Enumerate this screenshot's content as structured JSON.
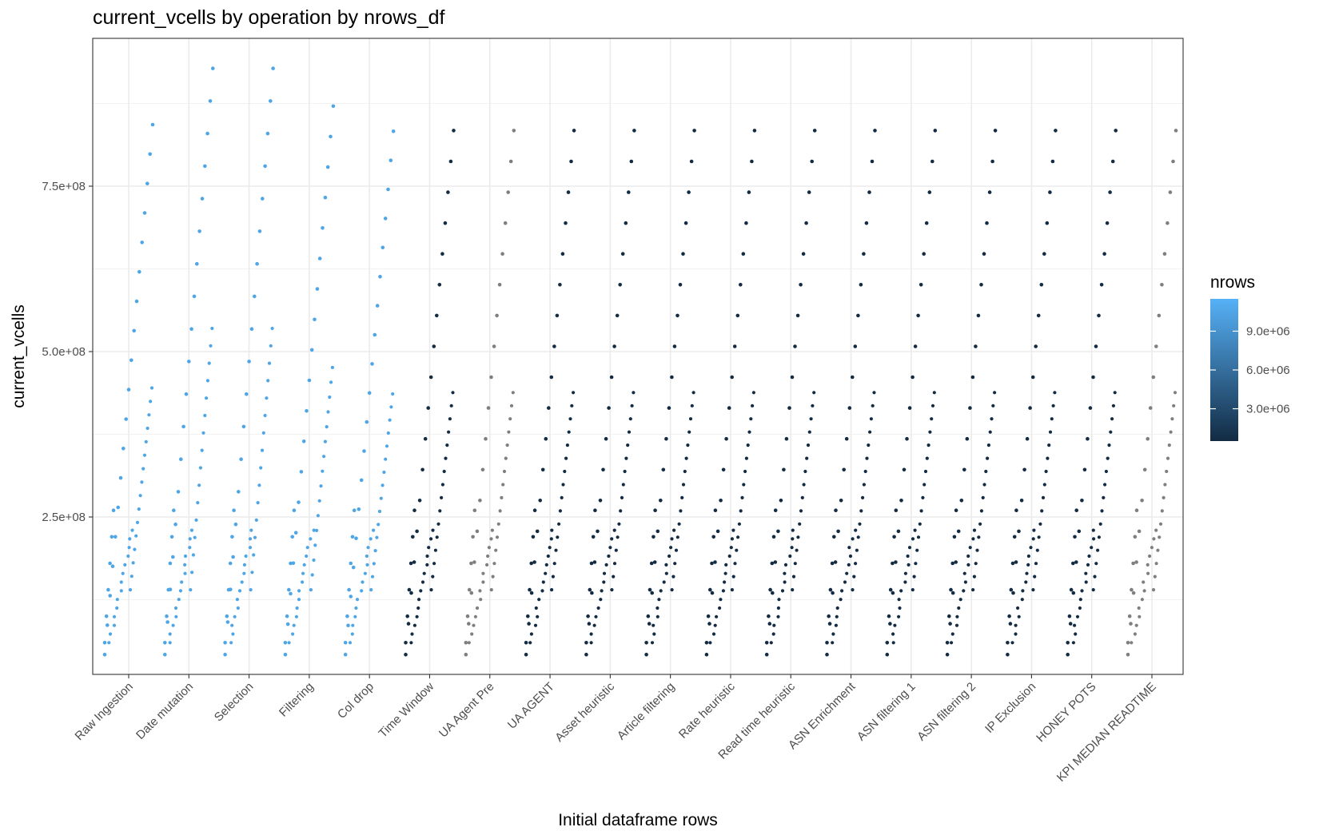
{
  "chart_data": {
    "type": "scatter",
    "title": "current_vcells by operation by nrows_df",
    "xlabel": "Initial dataframe rows",
    "ylabel": "current_vcells",
    "categories": [
      "Raw Ingestion",
      "Date mutation",
      "Selection",
      "Filtering",
      "Col drop",
      "Time Window",
      "UA Agent Pre",
      "UA AGENT",
      "Asset heuristic",
      "Article filtering",
      "Rate heuristic",
      "Read time heuristic",
      "ASN Enrichment",
      "ASN filtering 1",
      "ASN filtering 2",
      "IP Exclusion",
      "HONEY POTS",
      "KPI MEDIAN READTIME"
    ],
    "ylim": [
      0,
      930000000
    ],
    "yticks": [
      {
        "value": 250000000,
        "label": "2.5e+08"
      },
      {
        "value": 500000000,
        "label": "5.0e+08"
      },
      {
        "value": 750000000,
        "label": "7.5e+08"
      }
    ],
    "grid": true,
    "legend": {
      "title": "nrows",
      "position": "right",
      "type": "colorbar",
      "range": [
        500000,
        11500000
      ],
      "colors": [
        "#132B43",
        "#56B1F7"
      ],
      "ticks": [
        {
          "value": 3000000,
          "label": "3.0e+06"
        },
        {
          "value": 6000000,
          "label": "6.0e+06"
        },
        {
          "value": 9000000,
          "label": "9.0e+06"
        }
      ]
    },
    "point_colors": {
      "dark": "#132B43",
      "light": "#4FA6E6",
      "grey": "#7F7F7F"
    },
    "series": [
      {
        "operation": "Raw Ingestion",
        "color_group": "light",
        "max_vcells": 843000000,
        "side_max_vcells": 445000000
      },
      {
        "operation": "Date mutation",
        "color_group": "light",
        "max_vcells": 928000000,
        "side_max_vcells": 535000000
      },
      {
        "operation": "Selection",
        "color_group": "light",
        "max_vcells": 928000000,
        "side_max_vcells": 535000000
      },
      {
        "operation": "Filtering",
        "color_group": "light",
        "max_vcells": 871000000,
        "side_max_vcells": 476000000
      },
      {
        "operation": "Col drop",
        "color_group": "light",
        "max_vcells": 833000000,
        "side_max_vcells": 436000000
      },
      {
        "operation": "Time Window",
        "color_group": "dark",
        "max_vcells": 834000000,
        "side_max_vcells": 438000000
      },
      {
        "operation": "UA Agent Pre",
        "color_group": "grey",
        "max_vcells": 834000000,
        "side_max_vcells": 438000000
      },
      {
        "operation": "UA AGENT",
        "color_group": "dark",
        "max_vcells": 834000000,
        "side_max_vcells": 438000000
      },
      {
        "operation": "Asset heuristic",
        "color_group": "dark",
        "max_vcells": 834000000,
        "side_max_vcells": 438000000
      },
      {
        "operation": "Article filtering",
        "color_group": "dark",
        "max_vcells": 834000000,
        "side_max_vcells": 438000000
      },
      {
        "operation": "Rate heuristic",
        "color_group": "dark",
        "max_vcells": 834000000,
        "side_max_vcells": 438000000
      },
      {
        "operation": "Read time heuristic",
        "color_group": "dark",
        "max_vcells": 834000000,
        "side_max_vcells": 438000000
      },
      {
        "operation": "ASN Enrichment",
        "color_group": "dark",
        "max_vcells": 834000000,
        "side_max_vcells": 438000000
      },
      {
        "operation": "ASN filtering 1",
        "color_group": "dark",
        "max_vcells": 834000000,
        "side_max_vcells": 438000000
      },
      {
        "operation": "ASN filtering 2",
        "color_group": "dark",
        "max_vcells": 834000000,
        "side_max_vcells": 438000000
      },
      {
        "operation": "IP Exclusion",
        "color_group": "dark",
        "max_vcells": 834000000,
        "side_max_vcells": 438000000
      },
      {
        "operation": "HONEY POTS",
        "color_group": "dark",
        "max_vcells": 834000000,
        "side_max_vcells": 438000000
      },
      {
        "operation": "KPI MEDIAN READTIME",
        "color_group": "grey",
        "max_vcells": 834000000,
        "side_max_vcells": 438000000
      }
    ]
  }
}
